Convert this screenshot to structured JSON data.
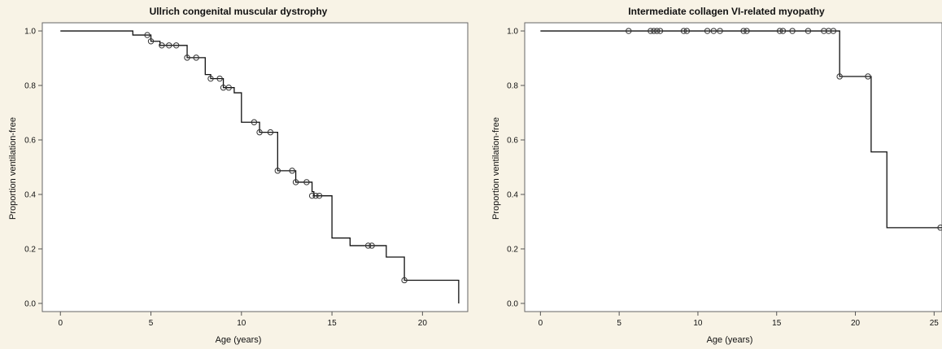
{
  "chart_data": [
    {
      "type": "line",
      "subtype": "kaplan-meier",
      "title": "Ullrich congenital muscular dystrophy",
      "xlabel": "Age (years)",
      "ylabel": "Proportion ventilation-free",
      "xlim": [
        -1,
        22.5
      ],
      "ylim": [
        -0.03,
        1.03
      ],
      "xticks": [
        "0",
        "5",
        "10",
        "15",
        "20"
      ],
      "xtick_values": [
        0,
        5,
        10,
        15,
        20
      ],
      "yticks": [
        "0.0",
        "0.2",
        "0.4",
        "0.6",
        "0.8",
        "1.0"
      ],
      "ytick_values": [
        0,
        0.2,
        0.4,
        0.6,
        0.8,
        1.0
      ],
      "grid": false,
      "steps": [
        [
          0,
          1.0
        ],
        [
          4.0,
          0.985
        ],
        [
          5.0,
          0.962
        ],
        [
          5.5,
          0.947
        ],
        [
          7.0,
          0.902
        ],
        [
          8.0,
          0.84
        ],
        [
          8.3,
          0.825
        ],
        [
          9.0,
          0.792
        ],
        [
          9.6,
          0.773
        ],
        [
          10.0,
          0.665
        ],
        [
          11.0,
          0.628
        ],
        [
          12.0,
          0.608
        ],
        [
          12.0,
          0.487
        ],
        [
          13.0,
          0.445
        ],
        [
          13.9,
          0.41
        ],
        [
          14.0,
          0.395
        ],
        [
          15.0,
          0.24
        ],
        [
          16.0,
          0.212
        ],
        [
          18.0,
          0.17
        ],
        [
          19.0,
          0.085
        ],
        [
          22.0,
          0.085
        ],
        [
          22.0,
          0.0
        ]
      ],
      "censored": [
        [
          4.8,
          0.985
        ],
        [
          5.0,
          0.962
        ],
        [
          5.6,
          0.947
        ],
        [
          6.0,
          0.947
        ],
        [
          6.4,
          0.947
        ],
        [
          7.0,
          0.902
        ],
        [
          7.5,
          0.902
        ],
        [
          8.3,
          0.825
        ],
        [
          8.8,
          0.825
        ],
        [
          9.0,
          0.792
        ],
        [
          9.3,
          0.792
        ],
        [
          10.7,
          0.665
        ],
        [
          11.0,
          0.628
        ],
        [
          11.6,
          0.628
        ],
        [
          12.0,
          0.487
        ],
        [
          12.8,
          0.487
        ],
        [
          13.0,
          0.445
        ],
        [
          13.6,
          0.445
        ],
        [
          13.9,
          0.395
        ],
        [
          14.1,
          0.395
        ],
        [
          14.3,
          0.395
        ],
        [
          17.0,
          0.212
        ],
        [
          17.2,
          0.212
        ],
        [
          19.0,
          0.085
        ]
      ]
    },
    {
      "type": "line",
      "subtype": "kaplan-meier",
      "title": "Intermediate collagen VI-related myopathy",
      "xlabel": "Age (years)",
      "ylabel": "Proportion ventilation-free",
      "xlim": [
        -1,
        25.5
      ],
      "ylim": [
        -0.03,
        1.03
      ],
      "xticks": [
        "0",
        "5",
        "10",
        "15",
        "20",
        "25"
      ],
      "xtick_values": [
        0,
        5,
        10,
        15,
        20,
        25
      ],
      "yticks": [
        "0.0",
        "0.2",
        "0.4",
        "0.6",
        "0.8",
        "1.0"
      ],
      "ytick_values": [
        0,
        0.2,
        0.4,
        0.6,
        0.8,
        1.0
      ],
      "grid": false,
      "steps": [
        [
          0,
          1.0
        ],
        [
          19.0,
          0.833
        ],
        [
          21.0,
          0.556
        ],
        [
          22.0,
          0.278
        ],
        [
          25.5,
          0.278
        ]
      ],
      "censored": [
        [
          5.6,
          1.0
        ],
        [
          7.0,
          1.0
        ],
        [
          7.2,
          1.0
        ],
        [
          7.4,
          1.0
        ],
        [
          7.6,
          1.0
        ],
        [
          9.1,
          1.0
        ],
        [
          9.3,
          1.0
        ],
        [
          10.6,
          1.0
        ],
        [
          11.0,
          1.0
        ],
        [
          11.4,
          1.0
        ],
        [
          12.9,
          1.0
        ],
        [
          13.1,
          1.0
        ],
        [
          15.2,
          1.0
        ],
        [
          15.4,
          1.0
        ],
        [
          16.0,
          1.0
        ],
        [
          17.0,
          1.0
        ],
        [
          18.0,
          1.0
        ],
        [
          18.3,
          1.0
        ],
        [
          18.6,
          1.0
        ],
        [
          19.0,
          0.833
        ],
        [
          20.8,
          0.833
        ],
        [
          25.4,
          0.278
        ]
      ]
    }
  ]
}
